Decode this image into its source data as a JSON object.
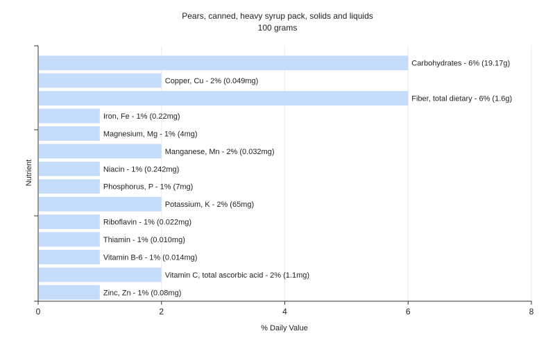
{
  "chart_data": {
    "type": "bar",
    "orientation": "horizontal",
    "title": "Pears, canned, heavy syrup pack, solids and liquids",
    "subtitle": "100 grams",
    "xlabel": "% Daily Value",
    "ylabel": "Nutrient",
    "xlim": [
      0,
      8
    ],
    "xticks": [
      "0",
      "2",
      "4",
      "6",
      "8"
    ],
    "grid": true,
    "legend": "none",
    "bar_color": "#c6dcfb",
    "categories": [
      "Carbohydrates",
      "Copper, Cu",
      "Fiber, total dietary",
      "Iron, Fe",
      "Magnesium, Mg",
      "Manganese, Mn",
      "Niacin",
      "Phosphorus, P",
      "Potassium, K",
      "Riboflavin",
      "Thiamin",
      "Vitamin B-6",
      "Vitamin C, total ascorbic acid",
      "Zinc, Zn"
    ],
    "values": [
      6,
      2,
      6,
      1,
      1,
      2,
      1,
      1,
      2,
      1,
      1,
      1,
      2,
      1
    ],
    "labels": [
      "Carbohydrates - 6% (19.17g)",
      "Copper, Cu - 2% (0.049mg)",
      "Fiber, total dietary - 6% (1.6g)",
      "Iron, Fe - 1% (0.22mg)",
      "Magnesium, Mg - 1% (4mg)",
      "Manganese, Mn - 2% (0.032mg)",
      "Niacin - 1% (0.242mg)",
      "Phosphorus, P - 1% (7mg)",
      "Potassium, K - 2% (65mg)",
      "Riboflavin - 1% (0.022mg)",
      "Thiamin - 1% (0.010mg)",
      "Vitamin B-6 - 1% (0.014mg)",
      "Vitamin C, total ascorbic acid - 2% (1.1mg)",
      "Zinc, Zn - 1% (0.08mg)"
    ]
  }
}
